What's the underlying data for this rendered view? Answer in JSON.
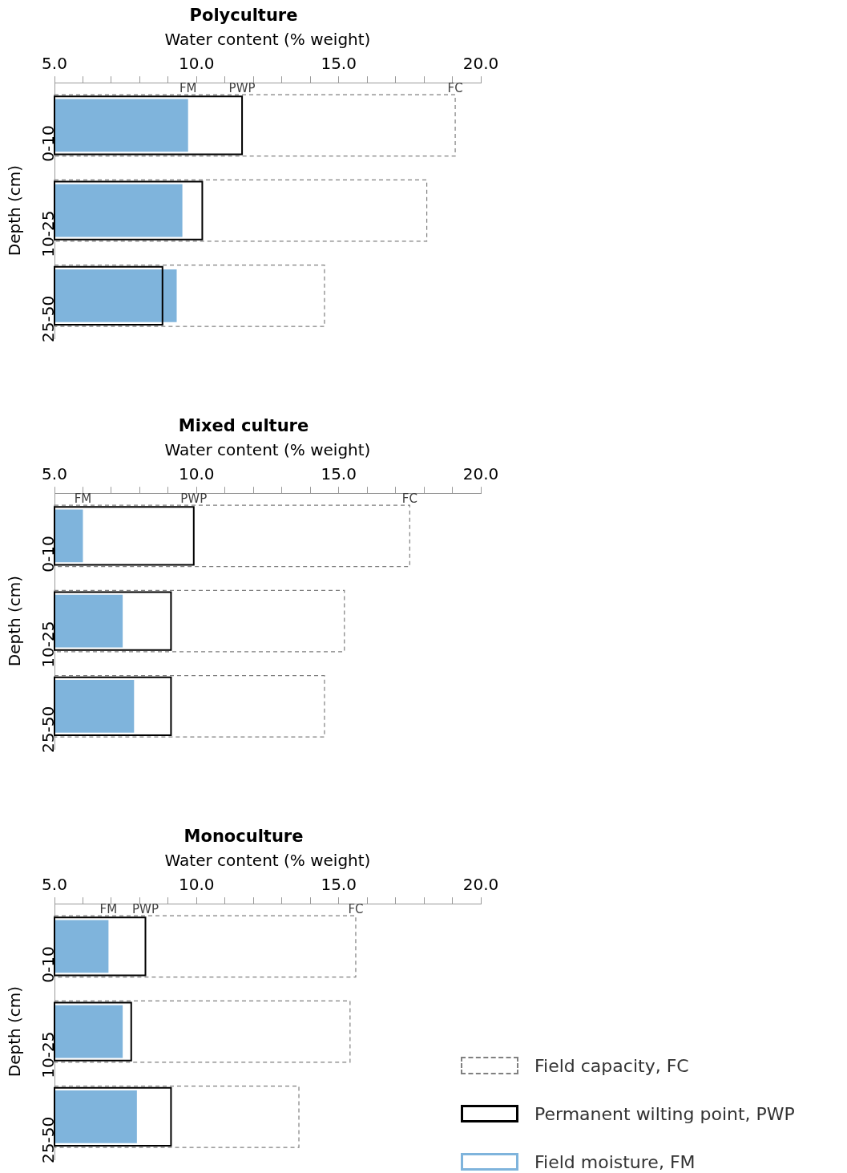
{
  "chart_data": [
    {
      "type": "bar",
      "orientation": "horizontal",
      "title": "Polyculture",
      "xlabel": "Water content (% weight)",
      "ylabel": "Depth (cm)",
      "categories": [
        "0-10",
        "10-25",
        "25-50"
      ],
      "series": [
        {
          "color": "#808080",
          "line_style": "dashed",
          "values": [
            19.1,
            18.1,
            14.5
          ]
        },
        {
          "color": "#000000",
          "values": [
            11.6,
            10.2,
            8.8
          ]
        },
        {
          "color": "#7fb4dc",
          "values": [
            9.7,
            9.5,
            9.3
          ]
        }
      ],
      "xlim": [
        5,
        20
      ],
      "xticks": [
        {
          "value": 5,
          "label": "5.0"
        },
        {
          "value": 6,
          "label": null
        },
        {
          "value": 7,
          "label": null
        },
        {
          "value": 8,
          "label": null
        },
        {
          "value": 9,
          "label": null
        },
        {
          "value": 10,
          "label": "10.0"
        },
        {
          "value": 11,
          "label": null
        },
        {
          "value": 12,
          "label": null
        },
        {
          "value": 13,
          "label": null
        },
        {
          "value": 14,
          "label": null
        },
        {
          "value": 15,
          "label": "15.0"
        },
        {
          "value": 16,
          "label": null
        },
        {
          "value": 17,
          "label": null
        },
        {
          "value": 18,
          "label": null
        },
        {
          "value": 19,
          "label": null
        },
        {
          "value": 20,
          "label": "20.0"
        }
      ],
      "annotations": [
        "FC",
        "PWP",
        "FM"
      ]
    },
    {
      "type": "bar",
      "orientation": "horizontal",
      "title": "Mixed culture",
      "xlabel": "Water content (% weight)",
      "ylabel": "Depth (cm)",
      "categories": [
        "0-10",
        "10-25",
        "25-50"
      ],
      "series": [
        {
          "color": "#808080",
          "line_style": "dashed",
          "values": [
            17.5,
            15.2,
            14.5
          ]
        },
        {
          "color": "#000000",
          "values": [
            9.9,
            9.1,
            9.1
          ]
        },
        {
          "color": "#7fb4dc",
          "values": [
            6.0,
            7.4,
            7.8
          ]
        }
      ],
      "xlim": [
        5,
        20
      ],
      "xticks": [
        {
          "value": 5,
          "label": "5.0"
        },
        {
          "value": 6,
          "label": null
        },
        {
          "value": 7,
          "label": null
        },
        {
          "value": 8,
          "label": null
        },
        {
          "value": 9,
          "label": null
        },
        {
          "value": 10,
          "label": "10.0"
        },
        {
          "value": 11,
          "label": null
        },
        {
          "value": 12,
          "label": null
        },
        {
          "value": 13,
          "label": null
        },
        {
          "value": 14,
          "label": null
        },
        {
          "value": 15,
          "label": "15.0"
        },
        {
          "value": 16,
          "label": null
        },
        {
          "value": 17,
          "label": null
        },
        {
          "value": 18,
          "label": null
        },
        {
          "value": 19,
          "label": null
        },
        {
          "value": 20,
          "label": "20.0"
        }
      ],
      "annotations": [
        "FC",
        "PWP",
        "FM"
      ]
    },
    {
      "type": "bar",
      "orientation": "horizontal",
      "title": "Monoculture",
      "xlabel": "Water content (% weight)",
      "ylabel": "Depth (cm)",
      "categories": [
        "0-10",
        "10-25",
        "25-50"
      ],
      "series": [
        {
          "name": "Field capacity, FC",
          "color": "#808080",
          "line_style": "dashed",
          "values": [
            15.6,
            15.4,
            13.6
          ]
        },
        {
          "name": "Permanent wilting point, PWP",
          "color": "#000000",
          "values": [
            8.2,
            7.7,
            9.1
          ]
        },
        {
          "name": "Field moisture, FM",
          "color": "#7fb4dc",
          "values": [
            6.9,
            7.4,
            7.9
          ]
        }
      ],
      "xlim": [
        5,
        20
      ],
      "xticks": [
        {
          "value": 5,
          "label": "5.0"
        },
        {
          "value": 6,
          "label": null
        },
        {
          "value": 7,
          "label": null
        },
        {
          "value": 8,
          "label": null
        },
        {
          "value": 9,
          "label": null
        },
        {
          "value": 10,
          "label": "10.0"
        },
        {
          "value": 11,
          "label": null
        },
        {
          "value": 12,
          "label": null
        },
        {
          "value": 13,
          "label": null
        },
        {
          "value": 14,
          "label": null
        },
        {
          "value": 15,
          "label": "15.0"
        },
        {
          "value": 16,
          "label": null
        },
        {
          "value": 17,
          "label": null
        },
        {
          "value": 18,
          "label": null
        },
        {
          "value": 19,
          "label": null
        },
        {
          "value": 20,
          "label": "20.0"
        }
      ],
      "annotations": [
        "FC",
        "PWP",
        "FM"
      ],
      "legend": "bottom right"
    }
  ]
}
